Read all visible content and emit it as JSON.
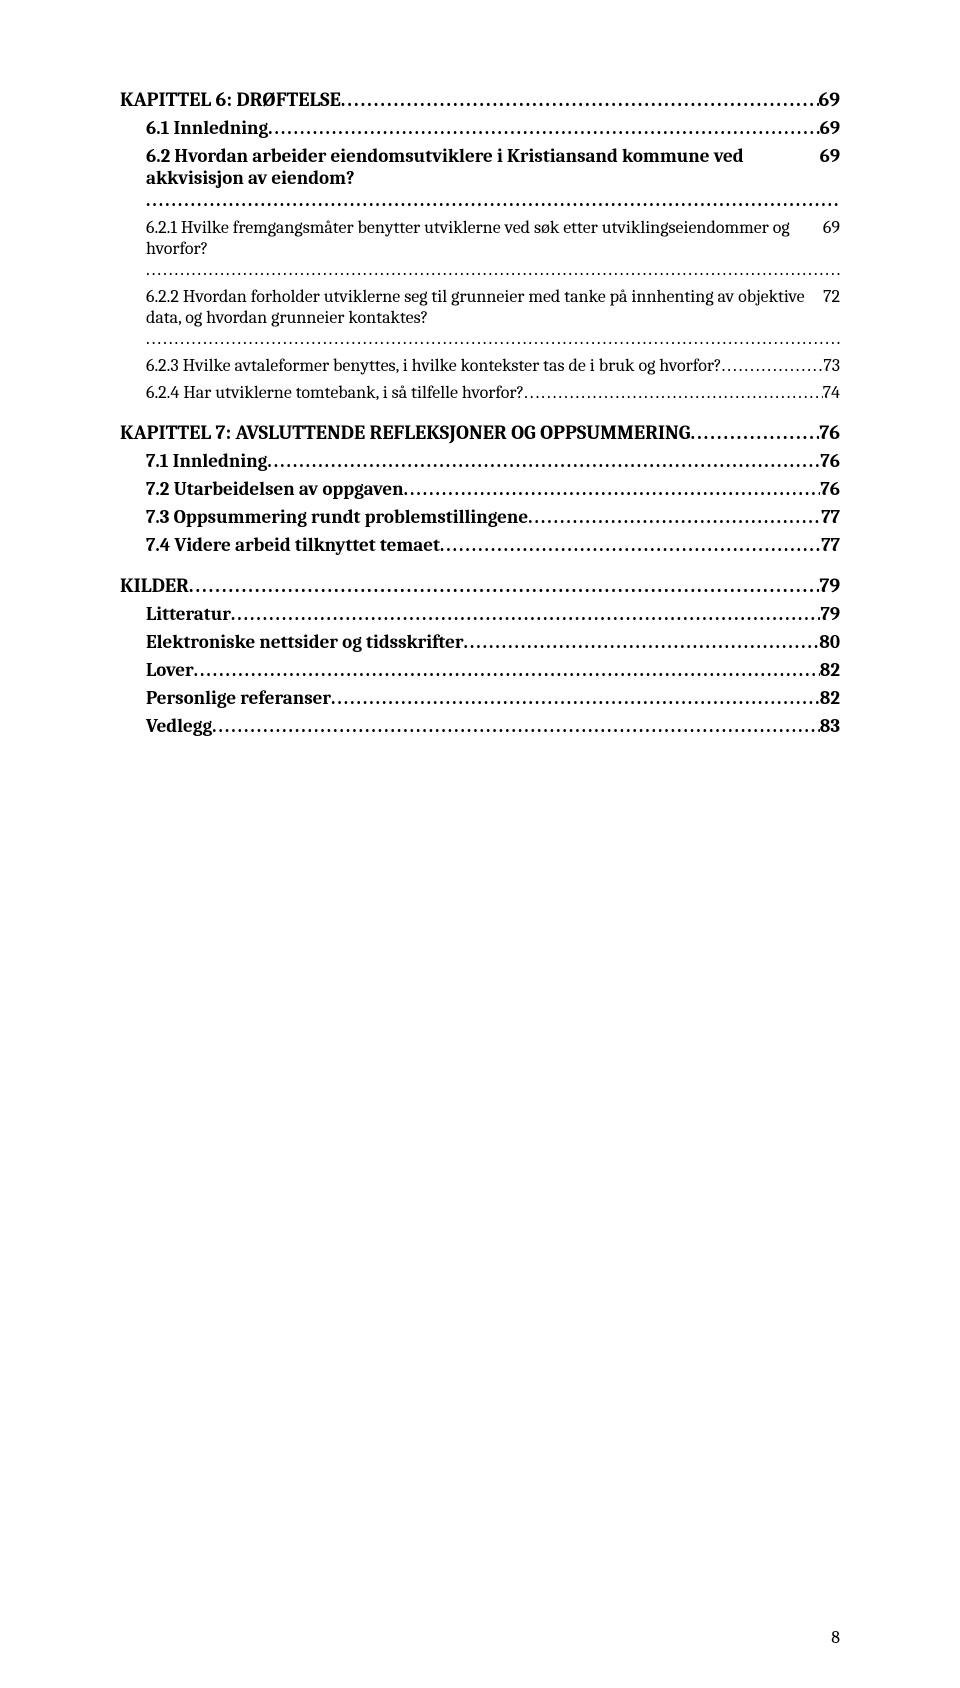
{
  "toc": [
    {
      "label": "KAPITTEL 6:  DRØFTELSE",
      "page": "69",
      "class": "chapter"
    },
    {
      "label": "6.1   Innledning",
      "page": "69",
      "class": "level1"
    },
    {
      "label": "6.2   Hvordan arbeider eiendomsutviklere i Kristiansand kommune ved akkvisisjon av eiendom?",
      "page": "69",
      "class": "level1",
      "wrap": true
    },
    {
      "label": "6.2.1    Hvilke fremgangsmåter benytter utviklerne ved søk etter utviklingseiendommer og hvorfor?",
      "page": "69",
      "class": "level2",
      "wrap": true
    },
    {
      "label": "6.2.2    Hvordan forholder utviklerne seg til grunneier med tanke på innhenting av objektive data, og hvordan grunneier kontaktes?",
      "page": "72",
      "class": "level2",
      "wrap": true
    },
    {
      "label": "6.2.3    Hvilke avtaleformer benyttes, i hvilke kontekster tas de i bruk og hvorfor?",
      "page": "73",
      "class": "level2"
    },
    {
      "label": "6.2.4    Har utviklerne tomtebank, i så tilfelle hvorfor?",
      "page": "74",
      "class": "level2"
    },
    {
      "label": "KAPITTEL 7:  AVSLUTTENDE REFLEKSJONER OG OPPSUMMERING",
      "page": "76",
      "class": "chapter"
    },
    {
      "label": "7.1   Innledning",
      "page": "76",
      "class": "level1"
    },
    {
      "label": "7.2   Utarbeidelsen av oppgaven",
      "page": "76",
      "class": "level1"
    },
    {
      "label": "7.3    Oppsummering rundt problemstillingene",
      "page": "77",
      "class": "level1"
    },
    {
      "label": "7.4   Videre arbeid tilknyttet temaet",
      "page": "77",
      "class": "level1"
    },
    {
      "label": "KILDER",
      "page": "79",
      "class": "chapter"
    },
    {
      "label": "Litteratur",
      "page": "79",
      "class": "level1"
    },
    {
      "label": "Elektroniske nettsider og tidsskrifter",
      "page": "80",
      "class": "level1"
    },
    {
      "label": "Lover",
      "page": "82",
      "class": "level1"
    },
    {
      "label": "Personlige referanser",
      "page": "82",
      "class": "level1"
    },
    {
      "label": "Vedlegg",
      "page": "83",
      "class": "level1"
    }
  ],
  "footer": {
    "page": "8"
  }
}
